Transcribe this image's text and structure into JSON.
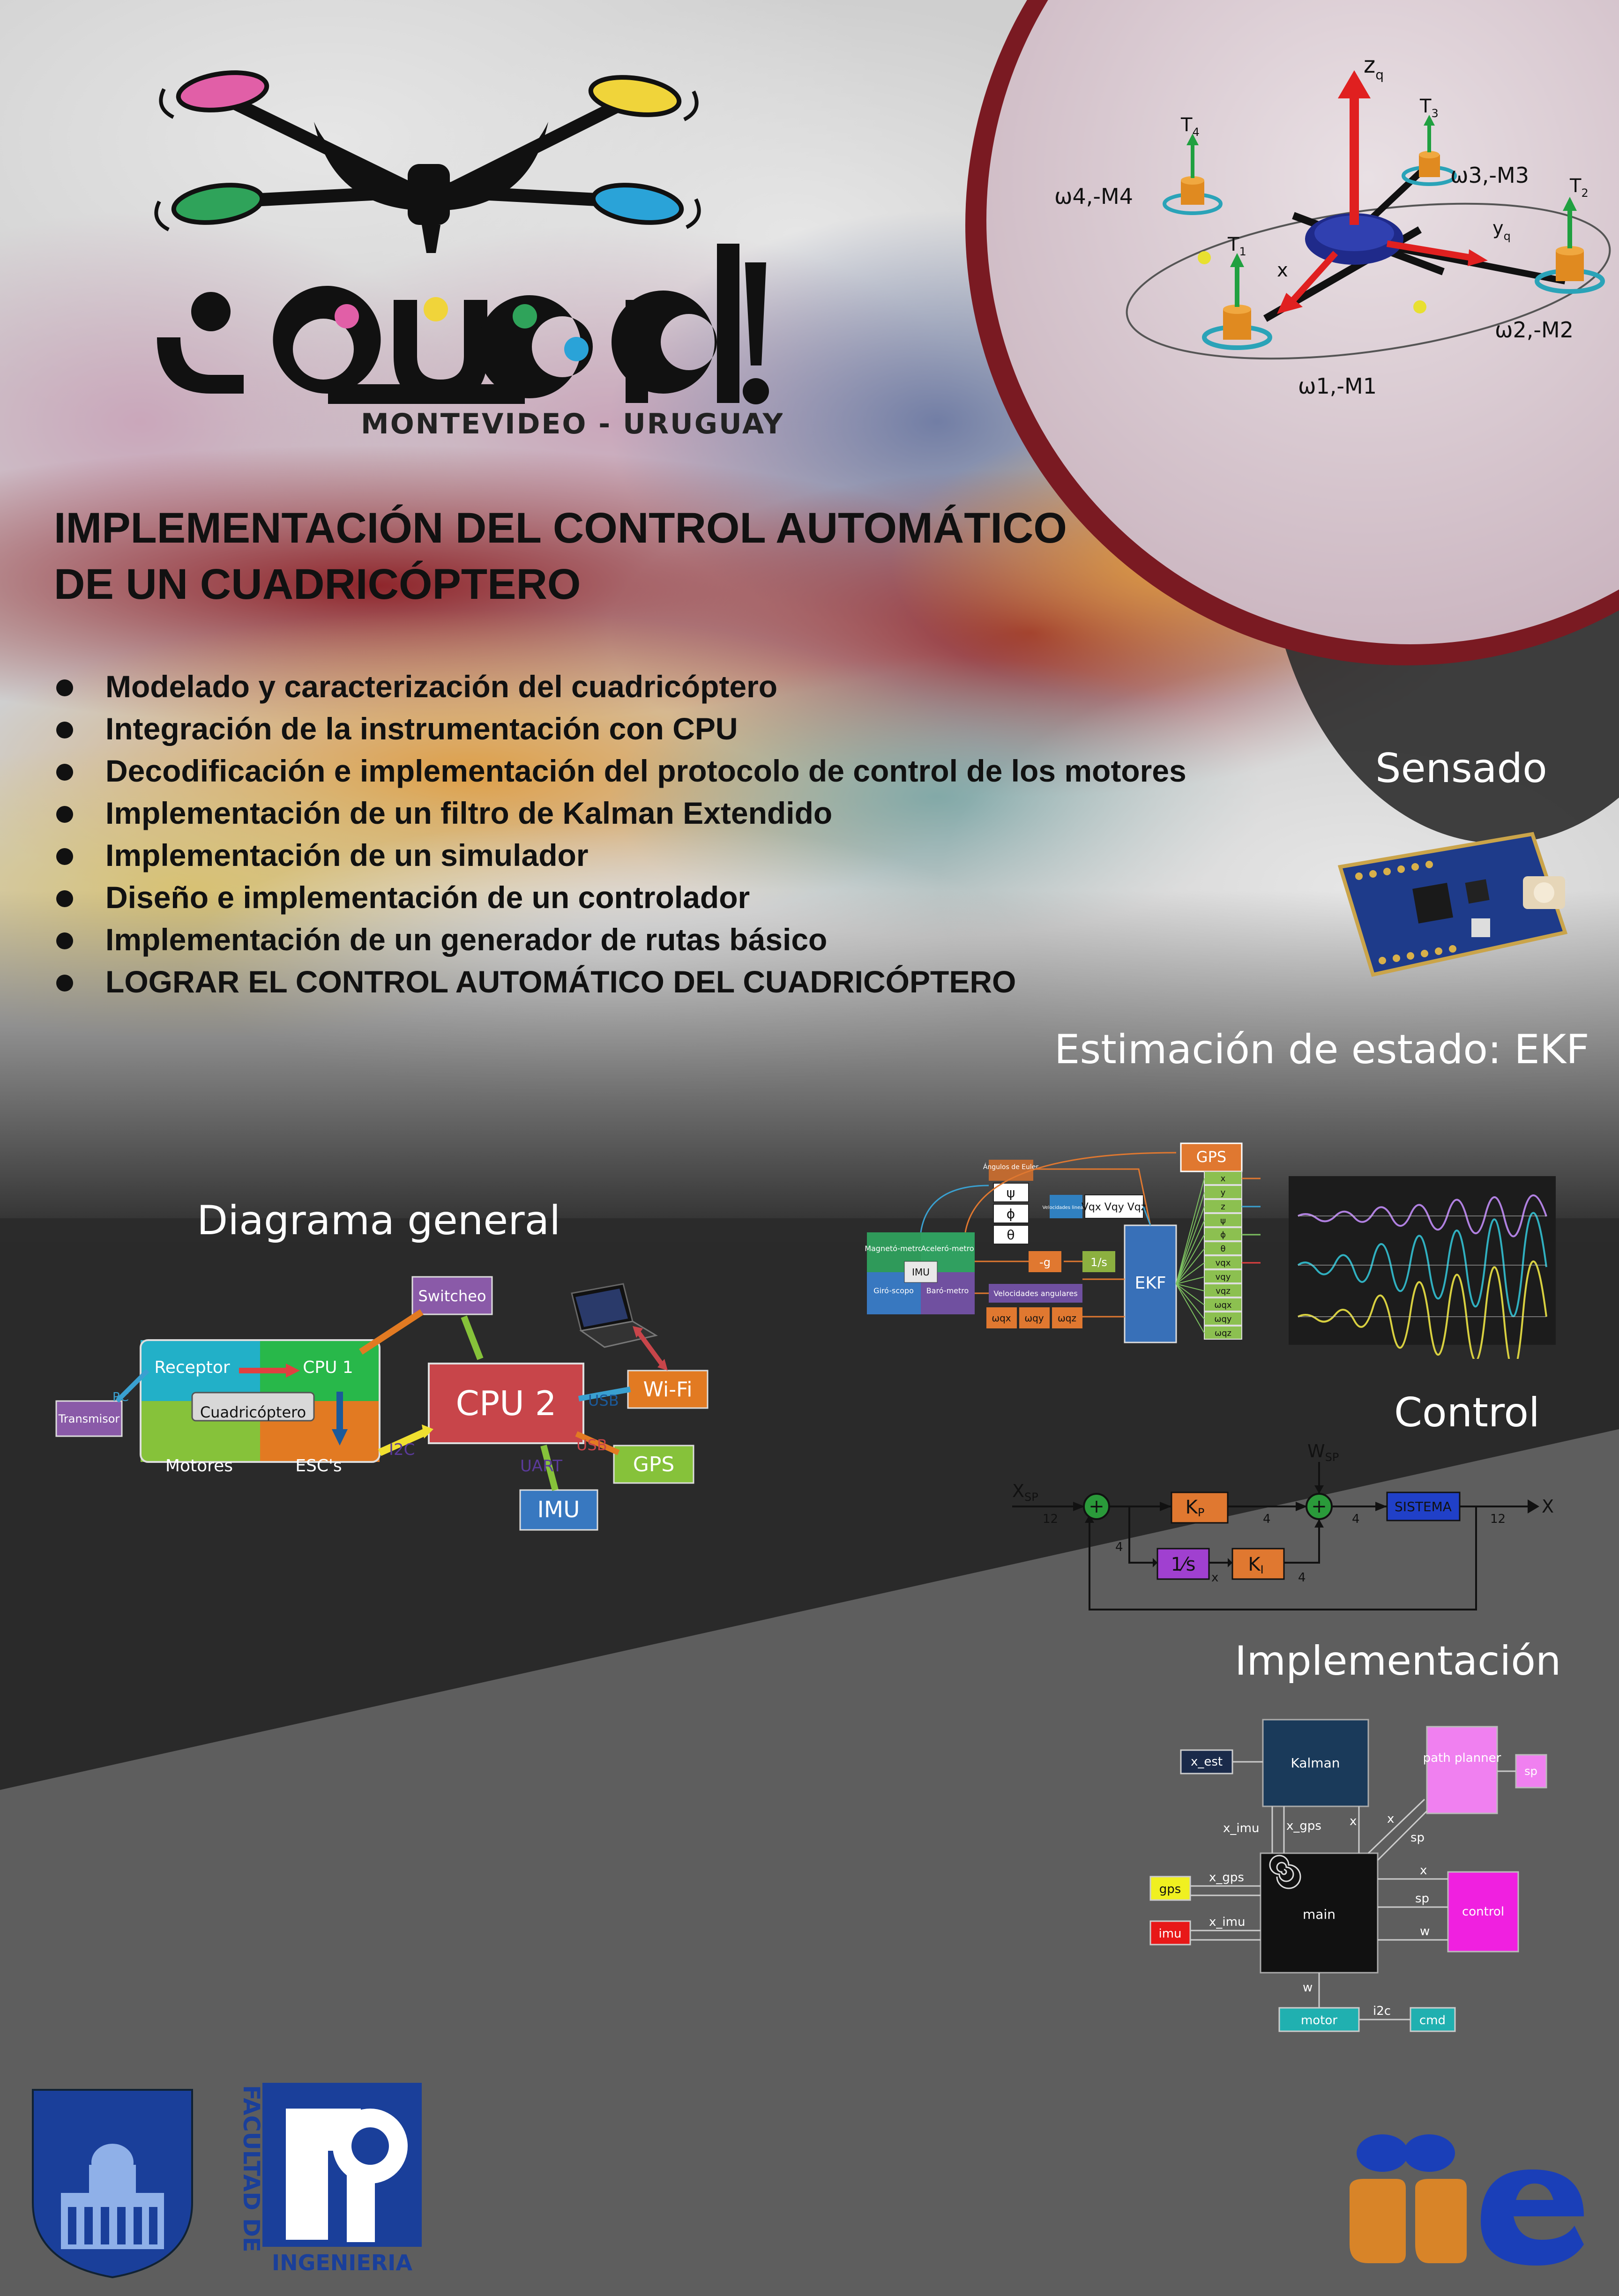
{
  "logo": {
    "subtitle": "MONTEVIDEO - URUGUAY"
  },
  "model_labels": {
    "zq": "z",
    "zq_sub": "q",
    "yq": "y",
    "yq_sub": "q",
    "x": "x",
    "t1": "T",
    "t1_sub": "1",
    "t2": "T",
    "t2_sub": "2",
    "t3": "T",
    "t3_sub": "3",
    "t4": "T",
    "t4_sub": "4",
    "w1": "ω1,-M1",
    "w2": "ω2,-M2",
    "w3": "ω3,-M3",
    "w4": "ω4,-M4"
  },
  "title": {
    "line1": "IMPLEMENTACIÓN DEL CONTROL AUTOMÁTICO",
    "line2": "DE UN CUADRICÓPTERO"
  },
  "goals": [
    "Modelado y caracterización del cuadricóptero",
    "Integración de la instrumentación con CPU",
    "Decodificación e implementación del protocolo de control de los motores",
    "Implementación de un filtro de Kalman Extendido",
    "Implementación de un simulador",
    "Diseño e implementación de un controlador",
    "Implementación de un generador de rutas básico",
    "LOGRAR EL CONTROL AUTOMÁTICO DEL CUADRICÓPTERO"
  ],
  "sections": {
    "sensado": "Sensado",
    "ekf": "Estimación de estado: EKF",
    "general": "Diagrama general",
    "control": "Control",
    "implementacion": "Implementación"
  },
  "general_diagram": {
    "transmisor": "Transmisor",
    "rc": "RC",
    "receptor": "Receptor",
    "cpu1": "CPU 1",
    "cuadricoptero": "Cuadricóptero",
    "motores": "Motores",
    "escs": "ESC's",
    "switcheo": "Switcheo",
    "cpu2": "CPU 2",
    "i2c": "I2C",
    "usb1": "USB",
    "usb2": "USB",
    "uart": "UART",
    "wifi": "Wi-Fi",
    "gps": "GPS",
    "imu": "IMU"
  },
  "ekf_diagram": {
    "gps": "GPS",
    "angulos": "Ángulos de Euler",
    "psi": "ψ",
    "phi": "ϕ",
    "theta": "θ",
    "vel_lineales": "Velocidades lineales",
    "vel_vals": "Vqx Vqy Vqz",
    "magnetometro": "Magnetó-metro",
    "acelerometro": "Aceleró-metro",
    "imu": "IMU",
    "giroscopo": "Giró-scopo",
    "barometro": "Baró-metro",
    "minus_g": "-g",
    "integrator": "1/s",
    "vel_angulares": "Velocidades angulares",
    "wqx": "ωqx",
    "wqy": "ωqy",
    "wqz": "ωqz",
    "ekf": "EKF",
    "outputs": [
      "x",
      "y",
      "z",
      "ψ",
      "ϕ",
      "θ",
      "vqx",
      "vqy",
      "vqz",
      "ωqx",
      "ωqy",
      "ωqz"
    ]
  },
  "control_diagram": {
    "xsp": "X",
    "xsp_sub": "SP",
    "wsp": "W",
    "wsp_sub": "SP",
    "kp": "K",
    "kp_sub": "P",
    "ki": "K",
    "ki_sub": "I",
    "integrator": "1⁄s",
    "sistema": "SISTEMA",
    "x_out": "X",
    "dims": [
      "12",
      "4",
      "4",
      "4",
      "12",
      "4"
    ]
  },
  "implementation_diagram": {
    "x_est": "x_est",
    "kalman": "Kalman",
    "path_planner": "path planner",
    "sp_box": "sp",
    "x_imu": "x_imu",
    "x_gps_top": "x_gps",
    "x_top": "x",
    "x_pp": "x",
    "sp_pp": "sp",
    "gps": "gps",
    "imu": "imu",
    "x_gps": "x_gps",
    "x_imu2": "x_imu",
    "main": "main",
    "control": "control",
    "x_c": "x",
    "sp_c": "sp",
    "w_c": "w",
    "w_m": "w",
    "motor": "motor",
    "i2c": "i2c",
    "cmd": "cmd"
  },
  "footer": {
    "facultad": "FACULTAD DE",
    "ingenieria": "INGENIERIA"
  }
}
